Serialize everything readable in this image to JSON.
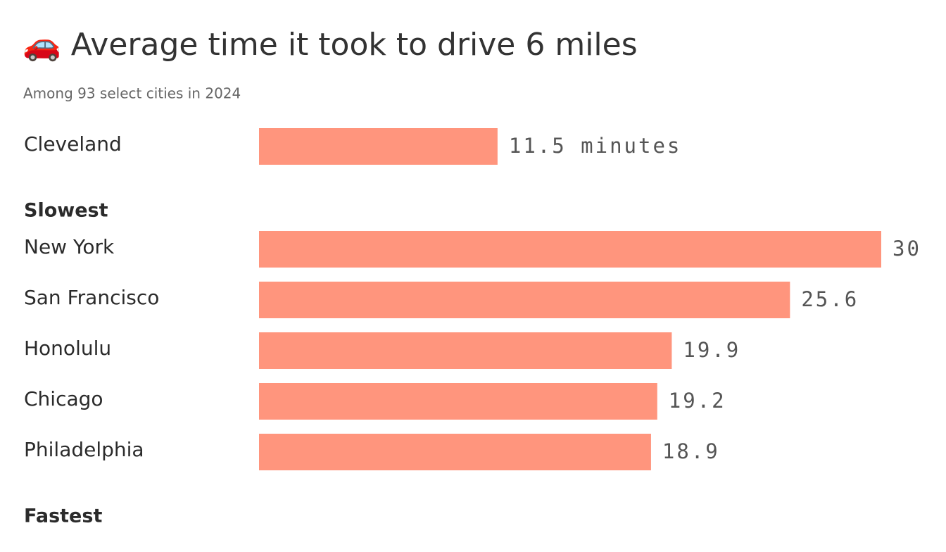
{
  "chart_data": {
    "type": "bar",
    "orientation": "horizontal",
    "title": "🚗 Average time it took to drive 6 miles",
    "subtitle": "Among 93 select cities in 2024",
    "color": "#ff957d",
    "categories": [
      "Cleveland"
    ],
    "values": [
      11.5
    ],
    "value_labels": [
      "11.5 minutes"
    ],
    "groups": [
      {
        "label": "Slowest",
        "categories": [
          "New York",
          "San Francisco",
          "Honolulu",
          "Chicago",
          "Philadelphia"
        ],
        "values": [
          30,
          25.6,
          19.9,
          19.2,
          18.9
        ]
      },
      {
        "label": "Fastest",
        "categories": [],
        "values": []
      }
    ]
  }
}
